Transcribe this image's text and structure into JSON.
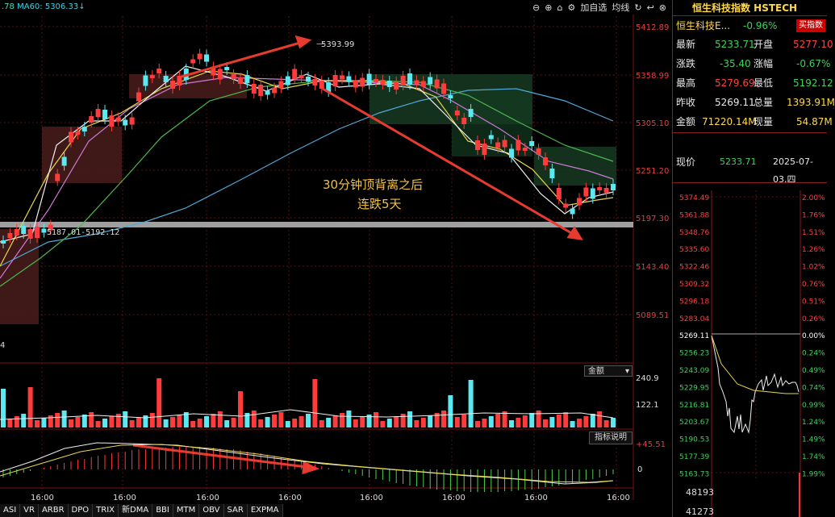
{
  "ma_info": {
    "prefix": ".78",
    "ma60": "MA60: 5306.33",
    "arrow": "↓"
  },
  "toolbar": {
    "add_watch": "加自选",
    "indicator_line": "均线",
    "icons": [
      "circle-minus-icon",
      "circle-plus-icon",
      "home-icon",
      "settings-icon",
      "refresh-icon",
      "back-icon",
      "circle-x-icon"
    ]
  },
  "price_axis": [
    "5412.89",
    "5358.99",
    "5305.10",
    "5251.20",
    "5197.30",
    "5143.40",
    "5089.51"
  ],
  "annotations": {
    "high_label": "5393.99",
    "support_label": "5187.01-5192.12",
    "comment_line1": "30分钟顶背离之后",
    "comment_line2": "连跌5天",
    "left_num": "4"
  },
  "volume": {
    "selector": "金额",
    "max_label": "240.9",
    "mid_label": "122.1"
  },
  "macd": {
    "button": "指标说明",
    "top_label": "+45.51",
    "zero_label": "0"
  },
  "time_labels": [
    "16:00",
    "16:00",
    "16:00",
    "16:00",
    "16:00",
    "16:00",
    "16:00",
    "16:00"
  ],
  "tabs": [
    "ASI",
    "VR",
    "ARBR",
    "DPO",
    "TRIX",
    "新DMA",
    "BBI",
    "MTM",
    "OBV",
    "SAR",
    "EXPMA"
  ],
  "right_panel": {
    "title": "恒生科技指数 HSTECH",
    "name": "恒生科技E...",
    "change_pct": "-0.96%",
    "buy_label": "买指数",
    "rows": [
      {
        "l1": "最新",
        "v1": "5233.71",
        "l2": "开盘",
        "v2": "5277.10"
      },
      {
        "l1": "涨跌",
        "v1": "-35.40",
        "l2": "涨幅",
        "v2": "-0.67%"
      },
      {
        "l1": "最高",
        "v1": "5279.69",
        "l2": "最低",
        "v2": "5192.12"
      },
      {
        "l1": "昨收",
        "v1": "5269.11",
        "l2": "总量",
        "v2": "1393.91M"
      },
      {
        "l1": "金额",
        "v1": "71220.14M",
        "l2": "现量",
        "v2": "54.87M"
      }
    ],
    "current_label": "现价",
    "current_value": "5233.71",
    "date": "2025-07-03,四",
    "left_axis": [
      "5374.49",
      "5361.88",
      "5348.76",
      "5335.60",
      "5322.46",
      "5309.32",
      "5296.18",
      "5283.04",
      "5269.11",
      "5256.23",
      "5243.09",
      "5229.95",
      "5216.81",
      "5203.67",
      "5190.53",
      "5177.39",
      "5163.73"
    ],
    "right_axis": [
      "2.00%",
      "1.76%",
      "1.51%",
      "1.26%",
      "1.02%",
      "0.76%",
      "0.51%",
      "0.26%",
      "0.00%",
      "0.24%",
      "0.49%",
      "0.74%",
      "0.99%",
      "1.24%",
      "1.49%",
      "1.74%",
      "1.99%"
    ],
    "vol_labels": [
      "48193",
      "41273"
    ]
  },
  "colors": {
    "up": "#ff3b3b",
    "down": "#5be8f0",
    "accent": "#e63b2e"
  }
}
